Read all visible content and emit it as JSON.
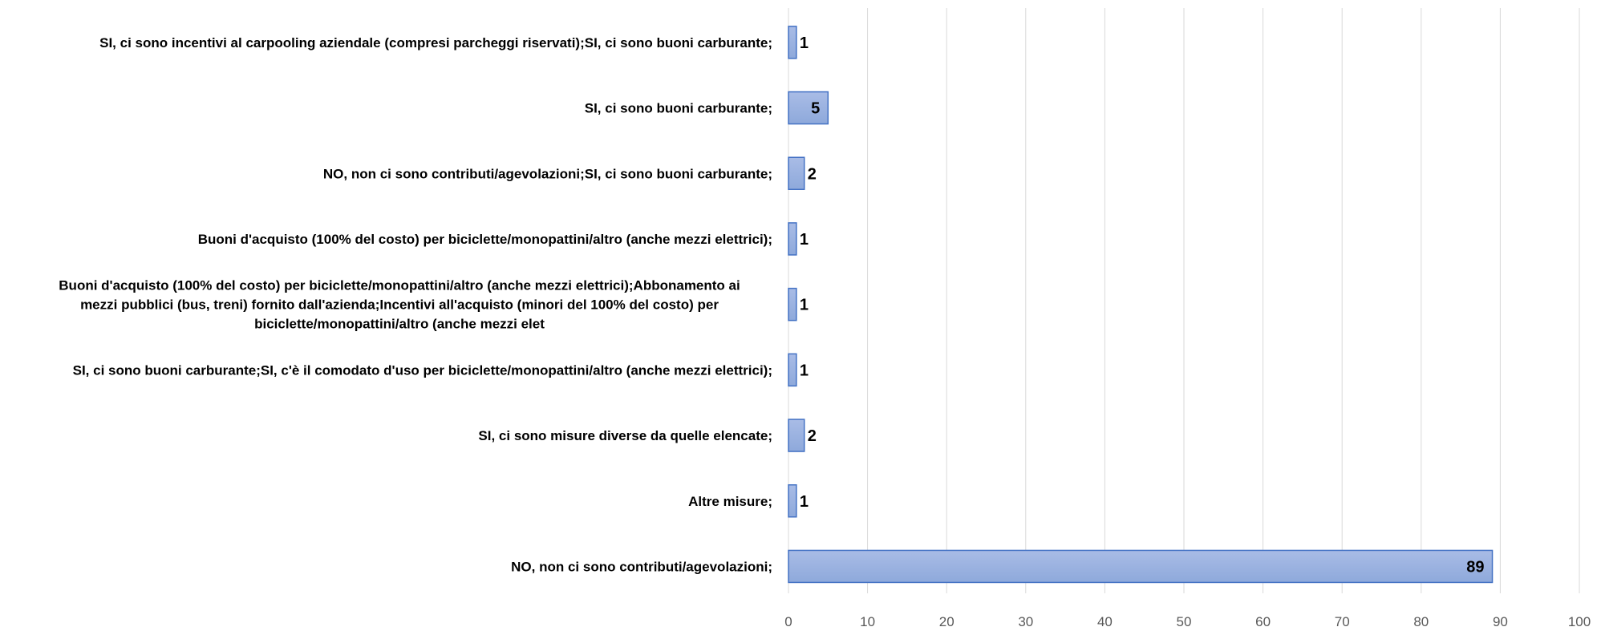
{
  "chart_data": {
    "type": "bar",
    "orientation": "horizontal",
    "categories": [
      "SI, ci sono incentivi al carpooling aziendale (compresi parcheggi riservati);SI, ci sono buoni carburante;",
      "SI, ci sono buoni carburante;",
      "NO, non ci sono contributi/agevolazioni;SI, ci sono buoni carburante;",
      "Buoni d'acquisto (100% del costo) per biciclette/monopattini/altro (anche mezzi elettrici);",
      "Buoni d'acquisto (100% del costo) per biciclette/monopattini/altro (anche mezzi elettrici);Abbonamento ai mezzi pubblici (bus, treni) fornito dall'azienda;Incentivi all'acquisto (minori del 100% del costo) per biciclette/monopattini/altro (anche mezzi elet",
      "SI, ci sono buoni carburante;SI, c'è il comodato d'uso per biciclette/monopattini/altro (anche mezzi elettrici);",
      "SI, ci sono misure diverse da quelle elencate;",
      "Altre misure;",
      "NO, non ci sono contributi/agevolazioni;"
    ],
    "category_lines": [
      [
        "SI, ci sono incentivi al carpooling aziendale (compresi parcheggi riservati);SI, ci sono buoni carburante;"
      ],
      [
        "SI, ci sono buoni carburante;"
      ],
      [
        "NO, non ci sono contributi/agevolazioni;SI, ci sono buoni carburante;"
      ],
      [
        "Buoni d'acquisto (100% del costo) per biciclette/monopattini/altro (anche mezzi elettrici);"
      ],
      [
        "Buoni d'acquisto (100% del costo) per biciclette/monopattini/altro (anche mezzi elettrici);Abbonamento ai",
        "mezzi pubblici (bus, treni) fornito dall'azienda;Incentivi all'acquisto (minori del 100% del costo) per",
        "biciclette/monopattini/altro (anche mezzi elet"
      ],
      [
        "SI, ci sono buoni carburante;SI, c'è il comodato d'uso per biciclette/monopattini/altro (anche mezzi elettrici);"
      ],
      [
        "SI, ci sono misure diverse da quelle elencate;"
      ],
      [
        "Altre misure;"
      ],
      [
        "NO, non ci sono contributi/agevolazioni;"
      ]
    ],
    "values": [
      1,
      5,
      2,
      1,
      1,
      1,
      2,
      1,
      89
    ],
    "xlim": [
      0,
      100
    ],
    "xticks": [
      0,
      10,
      20,
      30,
      40,
      50,
      60,
      70,
      80,
      90,
      100
    ],
    "grid": true,
    "title": "",
    "xlabel": "",
    "ylabel": "",
    "colors": {
      "bar_fill_top": "#a9bce6",
      "bar_fill_bottom": "#8ea9db",
      "bar_stroke": "#4472c4",
      "grid": "#d9d9d9",
      "tick_text": "#595959",
      "label_text": "#000000"
    }
  }
}
